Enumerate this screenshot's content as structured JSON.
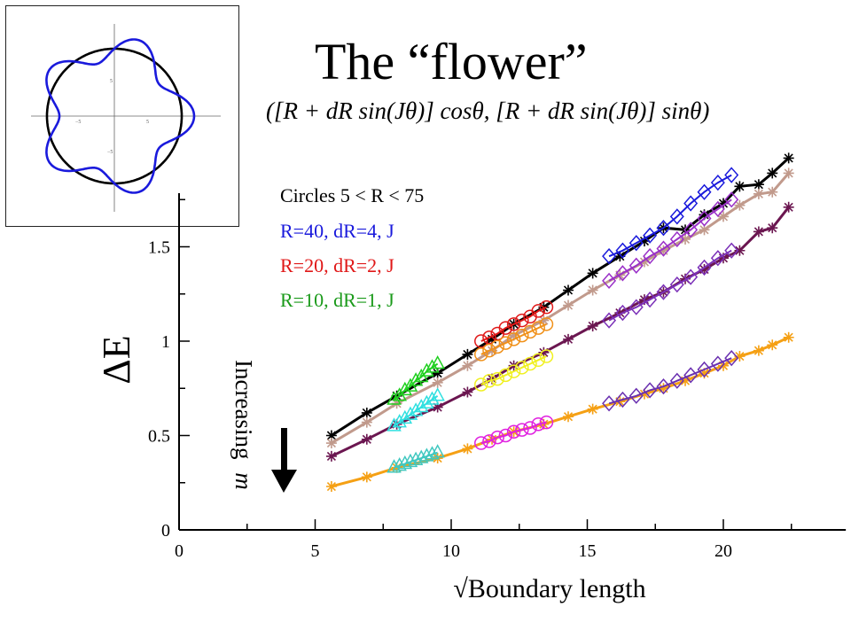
{
  "slide": {
    "title": "The “flower”",
    "formula": "([R + dR sin(Jθ)] cosθ, [R + dR sin(Jθ)] sinθ)",
    "legend": [
      {
        "label": "Circles 5 < R < 75",
        "color": "#000000"
      },
      {
        "label": "R=40, dR=4, J",
        "color": "#1a1adc"
      },
      {
        "label": "R=20, dR=2, J",
        "color": "#e01818"
      },
      {
        "label": "R=10, dR=1, J",
        "color": "#1a9a1a"
      }
    ],
    "annotation": {
      "text": "Increasing",
      "math": "m"
    },
    "inset": {
      "tick_labels": [
        "5",
        "−5",
        "5",
        "−5"
      ]
    }
  },
  "chart_data": {
    "type": "line",
    "title": "",
    "xlabel": "√Boundary length",
    "ylabel": "ΔE",
    "xlim": [
      0,
      24.5
    ],
    "ylim": [
      0,
      1.78
    ],
    "xticks": [
      0,
      5,
      10,
      15,
      20
    ],
    "yticks": [
      0,
      0.5,
      1,
      1.5
    ],
    "xtick_labels": [
      "0",
      "5",
      "10",
      "15",
      "20"
    ],
    "ytick_labels": [
      "0",
      "0.5",
      "1",
      "1.5"
    ],
    "grid": false,
    "series": [
      {
        "name": "",
        "color": "#000000",
        "marker": "star",
        "x": [
          5.6,
          6.9,
          8.0,
          9.5,
          10.6,
          11.5,
          12.3,
          13.4,
          14.3,
          15.2,
          16.2,
          17.1,
          17.8,
          18.6,
          19.3,
          20.0,
          20.6,
          21.3,
          21.8,
          22.4
        ],
        "y": [
          0.5,
          0.62,
          0.71,
          0.83,
          0.93,
          1.01,
          1.09,
          1.18,
          1.27,
          1.36,
          1.45,
          1.53,
          1.6,
          1.59,
          1.67,
          1.73,
          1.82,
          1.83,
          1.89,
          1.97
        ]
      },
      {
        "name": "",
        "color": "#c19a8c",
        "marker": "star",
        "x": [
          5.6,
          6.9,
          8.0,
          9.5,
          10.6,
          11.5,
          12.3,
          13.4,
          14.3,
          15.2,
          16.2,
          17.1,
          17.8,
          18.6,
          19.3,
          20.0,
          20.6,
          21.3,
          21.8,
          22.4
        ],
        "y": [
          0.46,
          0.57,
          0.67,
          0.78,
          0.87,
          0.95,
          1.03,
          1.11,
          1.19,
          1.27,
          1.35,
          1.42,
          1.48,
          1.54,
          1.59,
          1.66,
          1.72,
          1.78,
          1.79,
          1.89
        ]
      },
      {
        "name": "",
        "color": "#6b1650",
        "marker": "star",
        "x": [
          5.6,
          6.9,
          8.0,
          9.5,
          10.6,
          11.5,
          12.3,
          13.4,
          14.3,
          15.2,
          16.2,
          17.1,
          17.8,
          18.6,
          19.3,
          20.0,
          20.6,
          21.3,
          21.8,
          22.4
        ],
        "y": [
          0.39,
          0.48,
          0.56,
          0.65,
          0.73,
          0.8,
          0.87,
          0.94,
          1.01,
          1.08,
          1.15,
          1.22,
          1.26,
          1.33,
          1.38,
          1.44,
          1.48,
          1.58,
          1.6,
          1.71
        ]
      },
      {
        "name": "",
        "color": "#f5a014",
        "marker": "star",
        "x": [
          5.6,
          6.9,
          8.0,
          9.5,
          10.6,
          11.5,
          12.3,
          13.4,
          14.3,
          15.2,
          16.2,
          17.1,
          17.8,
          18.6,
          19.3,
          20.0,
          20.6,
          21.3,
          21.8,
          22.4
        ],
        "y": [
          0.23,
          0.28,
          0.33,
          0.38,
          0.43,
          0.48,
          0.52,
          0.56,
          0.6,
          0.64,
          0.68,
          0.72,
          0.75,
          0.79,
          0.83,
          0.87,
          0.92,
          0.95,
          0.98,
          1.02
        ]
      },
      {
        "name": "",
        "color": "#1fd01f",
        "marker": "triangle",
        "x": [
          7.9,
          8.1,
          8.3,
          8.5,
          8.7,
          8.9,
          9.1,
          9.3,
          9.5
        ],
        "y": [
          0.69,
          0.71,
          0.74,
          0.76,
          0.79,
          0.81,
          0.84,
          0.86,
          0.88
        ]
      },
      {
        "name": "",
        "color": "#30e0e0",
        "marker": "triangle",
        "x": [
          7.9,
          8.1,
          8.3,
          8.5,
          8.7,
          8.9,
          9.1,
          9.3,
          9.5
        ],
        "y": [
          0.55,
          0.57,
          0.59,
          0.61,
          0.63,
          0.65,
          0.67,
          0.69,
          0.71
        ]
      },
      {
        "name": "",
        "color": "#40c8c0",
        "marker": "triangle",
        "x": [
          7.9,
          8.1,
          8.3,
          8.5,
          8.7,
          8.9,
          9.1,
          9.3,
          9.5
        ],
        "y": [
          0.33,
          0.34,
          0.35,
          0.36,
          0.37,
          0.38,
          0.39,
          0.4,
          0.41
        ]
      },
      {
        "name": "",
        "color": "#e01818",
        "marker": "circle",
        "x": [
          11.1,
          11.4,
          11.7,
          12.0,
          12.3,
          12.6,
          12.9,
          13.2,
          13.5
        ],
        "y": [
          1.0,
          1.02,
          1.04,
          1.07,
          1.09,
          1.11,
          1.13,
          1.16,
          1.18
        ]
      },
      {
        "name": "",
        "color": "#f09018",
        "marker": "circle",
        "x": [
          11.1,
          11.4,
          11.7,
          12.0,
          12.3,
          12.6,
          12.9,
          13.2,
          13.5
        ],
        "y": [
          0.93,
          0.95,
          0.97,
          0.99,
          1.01,
          1.03,
          1.05,
          1.07,
          1.09
        ]
      },
      {
        "name": "",
        "color": "#f0f020",
        "marker": "circle",
        "x": [
          11.1,
          11.4,
          11.7,
          12.0,
          12.3,
          12.6,
          12.9,
          13.2,
          13.5
        ],
        "y": [
          0.77,
          0.79,
          0.8,
          0.82,
          0.84,
          0.86,
          0.88,
          0.9,
          0.92
        ]
      },
      {
        "name": "",
        "color": "#e020e0",
        "marker": "circle",
        "x": [
          11.1,
          11.4,
          11.7,
          12.0,
          12.3,
          12.6,
          12.9,
          13.2,
          13.5
        ],
        "y": [
          0.46,
          0.47,
          0.49,
          0.5,
          0.52,
          0.53,
          0.54,
          0.56,
          0.57
        ]
      },
      {
        "name": "",
        "color": "#1a1adc",
        "marker": "diamond",
        "x": [
          15.8,
          16.3,
          16.8,
          17.3,
          17.8,
          18.3,
          18.8,
          19.3,
          19.8,
          20.3
        ],
        "y": [
          1.45,
          1.48,
          1.52,
          1.56,
          1.6,
          1.66,
          1.73,
          1.79,
          1.84,
          1.88
        ]
      },
      {
        "name": "",
        "color": "#9a30c8",
        "marker": "diamond",
        "x": [
          15.8,
          16.3,
          16.8,
          17.3,
          17.8,
          18.3,
          18.8,
          19.3,
          19.8,
          20.3
        ],
        "y": [
          1.32,
          1.36,
          1.4,
          1.45,
          1.49,
          1.54,
          1.59,
          1.65,
          1.7,
          1.75
        ]
      },
      {
        "name": "",
        "color": "#7b30b8",
        "marker": "diamond",
        "x": [
          15.8,
          16.3,
          16.8,
          17.3,
          17.8,
          18.3,
          18.8,
          19.3,
          19.8,
          20.3
        ],
        "y": [
          1.11,
          1.15,
          1.18,
          1.22,
          1.26,
          1.3,
          1.34,
          1.39,
          1.44,
          1.48
        ]
      },
      {
        "name": "",
        "color": "#6a30b0",
        "marker": "diamond",
        "x": [
          15.8,
          16.3,
          16.8,
          17.3,
          17.8,
          18.3,
          18.8,
          19.3,
          19.8,
          20.3
        ],
        "y": [
          0.67,
          0.69,
          0.71,
          0.74,
          0.76,
          0.79,
          0.82,
          0.85,
          0.88,
          0.91
        ]
      }
    ]
  }
}
